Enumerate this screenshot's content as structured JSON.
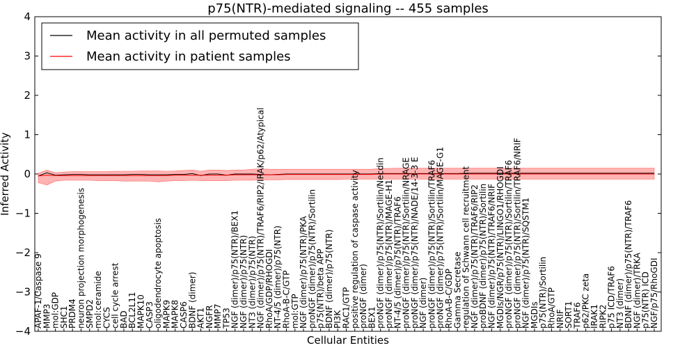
{
  "chart_data": {
    "type": "line",
    "title": "p75(NTR)-mediated signaling -- 455 samples",
    "xlabel": "Cellular Entities",
    "ylabel": "Inferred Activity",
    "ylim": [
      -4,
      4
    ],
    "yticks": [
      "4",
      "3",
      "2",
      "1",
      "0",
      "−1",
      "−2",
      "−3",
      "−4"
    ],
    "grid": false,
    "legend_position": "top-left",
    "colors": {
      "permuted": "#000000",
      "patient": "#ff0000",
      "band": "#ff9999"
    },
    "categories": [
      "APAF-1/Caspase 9",
      "MMP3",
      "mol:GDP",
      "SHC1",
      "PRDM4",
      "neuron projection morphogenesis",
      "SMPD2",
      "mol:ceramide",
      "CYCS",
      "cell cycle arrest",
      "BAD",
      "BCL2L11",
      "MAPK10",
      "CASP3",
      "oligodendrocyte apoptosis",
      "MAPK9",
      "MAPK8",
      "CASP6",
      "BDNF (dimer)",
      "AKT1",
      "NGFR",
      "MMP7",
      "TP53",
      "NGF (dimer)/p75(NTR)/BEX1",
      "NGF (dimer)/p75(NTR)",
      "NT3 (dimer)/p75(NTR)",
      "NGF (dimer)/p75(NTR)/TRAF6/RIP2/IRAK/p62/Atypical",
      "RhoA/GDP/RHOGDI",
      "NT-4/5 (dimer)/p75(NTR)",
      "RhoA-B-C/GTP",
      "mol:GTP",
      "NGF (dimer)/p75(NTR)/PKA",
      "proNGF (dimer)/p75(NTR)/Sortilin",
      "p75(NTR)/beta APP",
      "BDNF (dimer)/p75(NTR)",
      "PI3K",
      "RAC1/GTP",
      "positive regulation of caspase activity",
      "proNGF (dimer)",
      "BEX1",
      "proNGF (dimer)/p75(NTR)/Sortilin/Necdin",
      "proNGF (dimer)/p75(NTR)/MAGE-H1",
      "NT-4/5 (dimer)/p75(NTR)/TRAF6",
      "proNGF (dimer)/p75(NTR)/Sortilin/NRAGE",
      "proNGF (dimer)/p75(NTR)/NADE/14-3-3 E",
      "NGF (dimer)",
      "proNGF (dimer)/p75(NTR)/Sortilin/TRAF6",
      "proNGF (dimer)/p75(NTR)/Sortilin/MAGE-G1",
      "RhoA-B-C/GDP",
      "Gamma Secretase",
      "regulation of Schwann cell recruitment",
      "NGF (dimer)/p75(NTR)/TRAF6/RIP2",
      "proBDNF (dimer)/p75(NTR)/Sortilin",
      "NGF (dimer)/p75(NTR)/TRAF6/NRIF",
      "MGDIs/NGR/p75(NTR)/LINGO1/RHOGDI",
      "proNGF (dimer)/p75(NTR)/Sortilin/TRAF6",
      "proNGF (dimer)/p75(NTR)/Sortilin/TRAF6/NRIF",
      "NGF (dimer)/p75(NTR)/SQSTM1",
      "MGDIs",
      "p75(NTR)/Sortilin",
      "RhoA/GTP",
      "NRIF",
      "SORT1",
      "TRAF6",
      "p62/PKC zeta",
      "IRAK1",
      "RIPK2",
      "p75 ICD/TRAF6",
      "NT3 (dimer)",
      "BDNF (dimer)/p75(NTR)/TRAF6",
      "NGF (dimer)/TRKA",
      "p75(NTR) ICD",
      "NGF/p75/RhoGDI"
    ],
    "series": [
      {
        "name": "Mean activity in all permuted samples",
        "values": [
          -0.05,
          0.03,
          -0.03,
          -0.02,
          -0.01,
          -0.01,
          -0.02,
          -0.02,
          -0.02,
          -0.02,
          -0.02,
          -0.01,
          -0.01,
          -0.02,
          -0.02,
          -0.02,
          -0.01,
          -0.01,
          0.01,
          -0.04,
          0.0,
          0.0,
          -0.03,
          0.0,
          0.0,
          0.0,
          -0.01,
          -0.02,
          -0.01,
          0.0,
          0.0,
          0.0,
          0.0,
          0.0,
          0.0,
          0.0,
          0.0,
          0.0,
          0.0,
          0.0,
          0.01,
          0.01,
          0.01,
          0.01,
          0.01,
          0.01,
          0.01,
          0.01,
          0.01,
          0.01,
          0.02,
          0.02,
          0.02,
          0.02,
          0.02,
          0.02,
          0.02,
          0.02,
          0.02,
          0.02,
          0.02,
          0.02,
          0.02,
          0.02,
          0.02,
          0.02,
          0.02,
          0.02,
          0.02,
          0.02,
          0.02,
          0.02,
          0.02
        ]
      },
      {
        "name": "Mean activity in patient samples",
        "values": [
          -0.05,
          -0.03,
          -0.04,
          -0.04,
          -0.04,
          -0.04,
          -0.04,
          -0.04,
          -0.04,
          -0.04,
          -0.04,
          -0.04,
          -0.04,
          -0.04,
          -0.04,
          -0.04,
          -0.03,
          -0.03,
          -0.03,
          -0.03,
          -0.03,
          -0.03,
          -0.03,
          -0.02,
          -0.02,
          -0.02,
          -0.02,
          -0.02,
          -0.02,
          -0.01,
          -0.01,
          -0.01,
          -0.01,
          -0.01,
          -0.01,
          -0.01,
          -0.01,
          -0.01,
          -0.01,
          -0.01,
          0.0,
          0.0,
          0.0,
          0.0,
          0.0,
          0.0,
          0.0,
          0.0,
          0.0,
          0.0,
          0.0,
          0.0,
          0.0,
          0.0,
          0.0,
          0.0,
          0.0,
          0.0,
          0.0,
          0.0,
          0.0,
          0.0,
          0.0,
          0.0,
          0.0,
          0.0,
          0.0,
          0.0,
          0.0,
          0.0,
          0.0,
          0.0,
          0.0
        ]
      }
    ],
    "band_upper": [
      0.02,
      0.1,
      0.03,
      0.05,
      0.06,
      0.06,
      0.06,
      0.06,
      0.06,
      0.07,
      0.07,
      0.07,
      0.08,
      0.08,
      0.08,
      0.07,
      0.08,
      0.09,
      0.1,
      0.07,
      0.1,
      0.1,
      0.09,
      0.1,
      0.1,
      0.12,
      0.13,
      0.12,
      0.12,
      0.12,
      0.12,
      0.12,
      0.12,
      0.12,
      0.12,
      0.12,
      0.12,
      0.12,
      0.12,
      0.12,
      0.14,
      0.14,
      0.15,
      0.15,
      0.15,
      0.15,
      0.15,
      0.15,
      0.15,
      0.15,
      0.15,
      0.15,
      0.15,
      0.15,
      0.15,
      0.15,
      0.15,
      0.15,
      0.15,
      0.15,
      0.15,
      0.15,
      0.15,
      0.15,
      0.15,
      0.15,
      0.15,
      0.15,
      0.15,
      0.15,
      0.15,
      0.15,
      0.15
    ],
    "band_lower": [
      -0.22,
      -0.28,
      -0.18,
      -0.16,
      -0.16,
      -0.16,
      -0.16,
      -0.17,
      -0.17,
      -0.17,
      -0.18,
      -0.18,
      -0.18,
      -0.18,
      -0.2,
      -0.18,
      -0.17,
      -0.17,
      -0.16,
      -0.17,
      -0.17,
      -0.17,
      -0.17,
      -0.16,
      -0.16,
      -0.16,
      -0.15,
      -0.15,
      -0.15,
      -0.14,
      -0.14,
      -0.14,
      -0.14,
      -0.14,
      -0.14,
      -0.14,
      -0.13,
      -0.13,
      -0.13,
      -0.13,
      -0.13,
      -0.13,
      -0.13,
      -0.13,
      -0.13,
      -0.13,
      -0.13,
      -0.13,
      -0.13,
      -0.13,
      -0.13,
      -0.13,
      -0.13,
      -0.13,
      -0.13,
      -0.13,
      -0.13,
      -0.13,
      -0.13,
      -0.13,
      -0.13,
      -0.13,
      -0.13,
      -0.13,
      -0.13,
      -0.13,
      -0.13,
      -0.13,
      -0.13,
      -0.13,
      -0.13,
      -0.13,
      -0.13
    ]
  }
}
